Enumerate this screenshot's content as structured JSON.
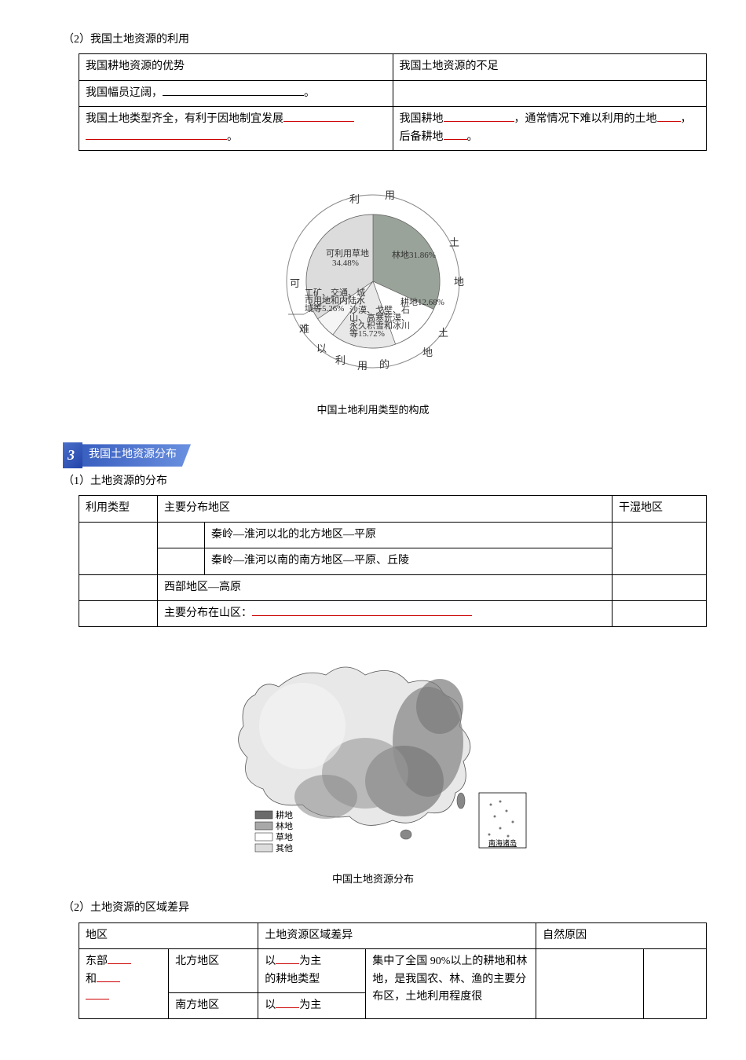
{
  "sec2": {
    "heading": "（2）我国土地资源的利用",
    "table1": {
      "r1c1": "我国耕地资源的优势",
      "r1c2": "我国土地资源的不足",
      "r2c1_a": "我国幅员辽阔，",
      "r2c1_b": "。",
      "r3c1_a": "我国土地类型齐全，有利于因地制宜发展",
      "r3c1_b": "。",
      "r3c2_a": "我国耕地",
      "r3c2_b": "，通常情况下难以利用的土地",
      "r3c2_c": "，后备耕地",
      "r3c2_d": "。"
    }
  },
  "pie": {
    "caption": "中国土地利用类型的构成",
    "arc_outer": [
      "利",
      "用",
      "土",
      "地"
    ],
    "arc_bl": [
      "可",
      "难",
      "以",
      "利",
      "用",
      "的",
      "土",
      "地"
    ],
    "slices": [
      {
        "label": "林地31.86%",
        "value": 31.86,
        "fill": "#9aa39a"
      },
      {
        "label": "耕地12.68%",
        "value": 12.68,
        "fill": "#ffffff"
      },
      {
        "label_lines": [
          "沙漠、戈壁、石",
          "山、高寒荒漠、",
          "永久积雪和冰川",
          "等15.72%"
        ],
        "value": 15.72,
        "fill": "#e8e8e8"
      },
      {
        "label_lines": [
          "工矿、交通、城",
          "市用地和内陆水",
          "域等5.26%"
        ],
        "value": 5.26,
        "fill": "#f5f5f5"
      },
      {
        "label_lines": [
          "可利用草地",
          "34.48%"
        ],
        "value": 34.48,
        "fill": "#dcdcdc"
      }
    ],
    "colors": {
      "ring_bg": "#ffffff",
      "ring_stroke": "#888",
      "text": "#333"
    }
  },
  "sec3": {
    "banner_num": "3",
    "banner_text": "我国土地资源分布",
    "h1": "（1）土地资源的分布",
    "table2": {
      "h1": "利用类型",
      "h2": "主要分布地区",
      "h3": "干湿地区",
      "r1": "秦岭—淮河以北的北方地区—平原",
      "r2": "秦岭—淮河以南的南方地区—平原、丘陵",
      "r3": "西部地区—高原",
      "r4": "主要分布在山区："
    },
    "h2": "（2）土地资源的区域差异",
    "table3": {
      "h1": "地区",
      "h2": "土地资源区域差异",
      "h3": "自然原因",
      "r1c1_a": "东部",
      "r1c1_b": "和",
      "r1c2": "北方地区",
      "r1c3_a": "以",
      "r1c3_b": "为主",
      "r1c3_c": "的耕地类型",
      "r1c4": "集中了全国 90%以上的耕地和林地，是我国农、林、渔的主要分布区，土地利用程度很",
      "r2c2": "南方地区",
      "r2c3_a": "以",
      "r2c3_b": "为主"
    }
  },
  "map": {
    "caption": "中国土地资源分布",
    "legend": [
      {
        "label": "耕地",
        "fill": "#6b6b6b"
      },
      {
        "label": "林地",
        "fill": "#a8a8a8"
      },
      {
        "label": "草地",
        "fill": "#ffffff"
      },
      {
        "label": "其他",
        "fill": "#dcdcdc"
      }
    ],
    "inset_label": "南海诸岛"
  }
}
